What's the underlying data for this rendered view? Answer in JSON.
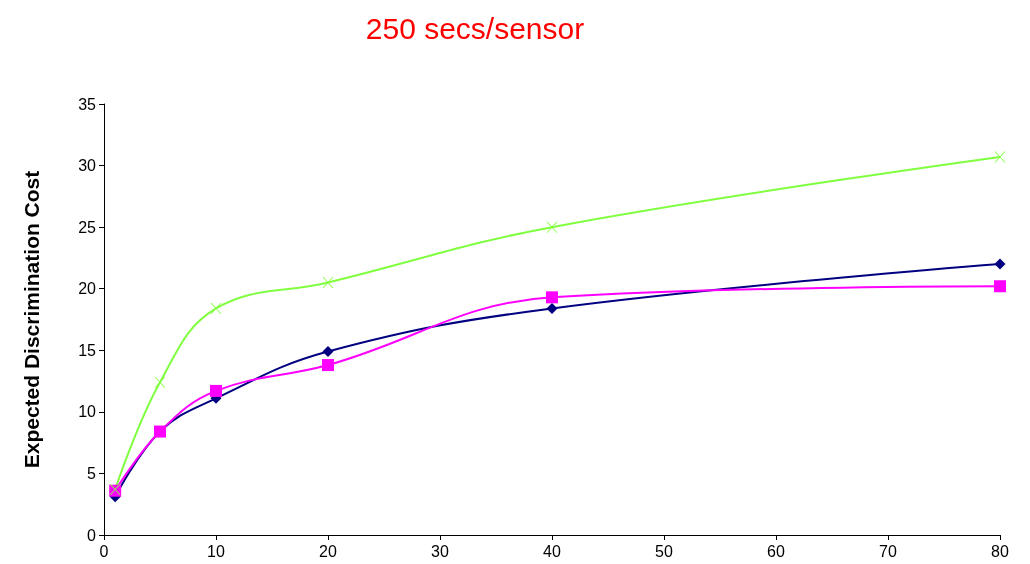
{
  "chart_data": {
    "type": "line",
    "title": "250 secs/sensor",
    "ylabel": "Expected Discrimination Cost",
    "x": [
      1,
      5,
      10,
      20,
      40,
      80
    ],
    "series": [
      {
        "color": "#000080",
        "marker": "diamond",
        "values": [
          3.1,
          8.4,
          11.1,
          14.9,
          18.4,
          22.0
        ]
      },
      {
        "color": "#ff00ff",
        "marker": "square",
        "values": [
          3.6,
          8.4,
          11.7,
          13.8,
          19.3,
          20.2
        ]
      },
      {
        "color": "#80ff40",
        "marker": "cross",
        "values": [
          3.7,
          12.4,
          18.4,
          20.5,
          25.0,
          30.7
        ]
      }
    ],
    "xlim": [
      0,
      80
    ],
    "xticks": [
      0,
      10,
      20,
      30,
      40,
      50,
      60,
      70,
      80
    ],
    "ylim": [
      0,
      35
    ],
    "yticks": [
      0,
      5,
      10,
      15,
      20,
      25,
      30,
      35
    ],
    "grid": false,
    "line_style": "solid"
  }
}
